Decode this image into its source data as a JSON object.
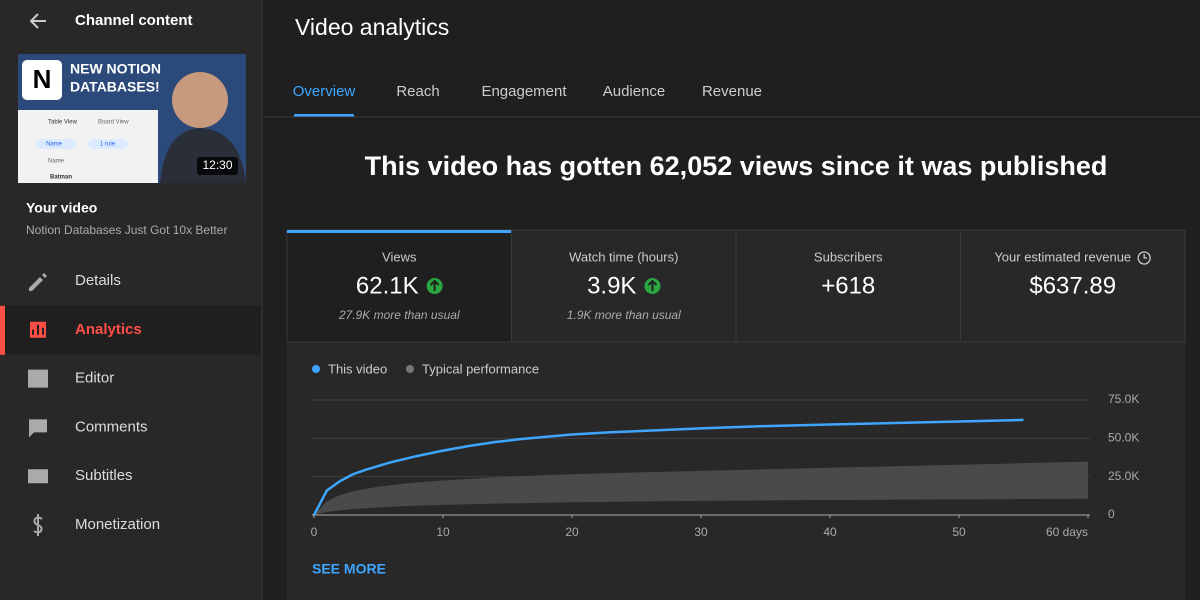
{
  "sidebar": {
    "title": "Channel content",
    "thumbnail": {
      "headline": [
        "NEW NOTION",
        "DATABASES!"
      ],
      "tabs": [
        "Table View",
        "Board View"
      ],
      "filters": [
        "Name",
        "1 rule"
      ],
      "column": "Name",
      "row": "Batman",
      "duration": "12:30"
    },
    "video_label": "Your video",
    "video_title": "Notion Databases Just Got 10x Better",
    "nav": [
      {
        "label": "Details",
        "selected": false
      },
      {
        "label": "Analytics",
        "selected": true
      },
      {
        "label": "Editor",
        "selected": false
      },
      {
        "label": "Comments",
        "selected": false
      },
      {
        "label": "Subtitles",
        "selected": false
      },
      {
        "label": "Monetization",
        "selected": false
      }
    ]
  },
  "main": {
    "title": "Video analytics",
    "tabs": [
      {
        "label": "Overview",
        "selected": true
      },
      {
        "label": "Reach",
        "selected": false
      },
      {
        "label": "Engagement",
        "selected": false
      },
      {
        "label": "Audience",
        "selected": false
      },
      {
        "label": "Revenue",
        "selected": false
      }
    ],
    "headline": "This video has gotten 62,052 views since it was published",
    "cards": [
      {
        "label": "Views",
        "value": "62.1K",
        "trend": "up",
        "note": "27.9K more than usual",
        "selected": true
      },
      {
        "label": "Watch time (hours)",
        "value": "3.9K",
        "trend": "up",
        "note": "1.9K more than usual",
        "selected": false
      },
      {
        "label": "Subscribers",
        "value": "+618",
        "selected": false
      },
      {
        "label": "Your estimated revenue",
        "value": "$637.89",
        "selected": false
      }
    ],
    "see_more": "SEE MORE"
  },
  "chart_data": {
    "type": "line",
    "x": [
      0,
      1,
      2,
      3,
      4,
      5,
      6,
      7,
      8,
      10,
      12,
      14,
      16,
      18,
      20,
      23,
      26,
      30,
      35,
      40,
      45,
      50,
      55,
      60
    ],
    "series": [
      {
        "name": "This video",
        "color": "#3ea6ff",
        "values": [
          0,
          16000,
          22000,
          26500,
          29500,
          32000,
          34500,
          36500,
          38500,
          42000,
          45000,
          47500,
          49500,
          51000,
          52500,
          54000,
          55000,
          56500,
          58000,
          59000,
          60000,
          61000,
          62000,
          null
        ]
      }
    ],
    "band": {
      "name": "Typical performance",
      "color": "#4a4a4a",
      "low": [
        0,
        2000,
        3000,
        3800,
        4400,
        5000,
        5400,
        5800,
        6100,
        6600,
        7000,
        7400,
        7700,
        8000,
        8300,
        8600,
        8900,
        9200,
        9500,
        9800,
        10000,
        10200,
        10400,
        10600
      ],
      "high": [
        0,
        9000,
        13000,
        15500,
        17000,
        18500,
        19500,
        20500,
        21300,
        22500,
        23500,
        24500,
        25300,
        26000,
        26600,
        27300,
        28000,
        28800,
        29800,
        30800,
        31800,
        32800,
        33800,
        34800
      ]
    },
    "xlim": [
      0,
      60
    ],
    "xticks": [
      0,
      10,
      20,
      30,
      40,
      50,
      {
        "value": 60,
        "label": "60 days"
      }
    ],
    "ylim": [
      0,
      75000
    ],
    "yticks": [
      0,
      {
        "value": 25000,
        "label": "25.0K"
      },
      {
        "value": 50000,
        "label": "50.0K"
      },
      {
        "value": 75000,
        "label": "75.0K"
      }
    ],
    "grid": true
  }
}
